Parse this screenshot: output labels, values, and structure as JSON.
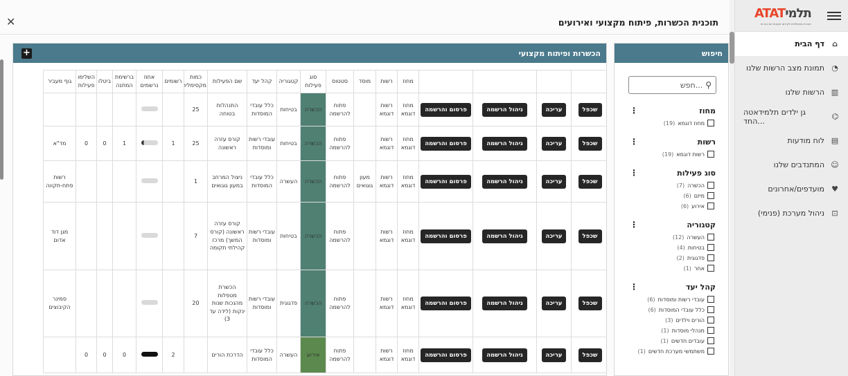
{
  "app": {
    "logo_text_left": "ATAT",
    "logo_text_right": "תלמי",
    "logo_subtitle": "תוכנית ממשלתית לקידום מעונות יום והורות",
    "nav": [
      {
        "label": "דף הבית",
        "icon": "home-icon",
        "glyph": "⌂",
        "active": true
      },
      {
        "label": "תמונת מצב הרשות שלנו",
        "icon": "chart-icon",
        "glyph": "◔",
        "active": false
      },
      {
        "label": "הרשות שלנו",
        "icon": "building-icon",
        "glyph": "▥",
        "active": false
      },
      {
        "label": "גן ילדים תלמידאטה החד...",
        "icon": "institution-icon",
        "glyph": "⌬",
        "active": false
      },
      {
        "label": "לוח מודעות",
        "icon": "board-icon",
        "glyph": "▤",
        "active": false
      },
      {
        "label": "המתנדבים שלנו",
        "icon": "users-icon",
        "glyph": "☺",
        "active": false
      },
      {
        "label": "מועדפים/אחרונים",
        "icon": "heart-icon",
        "glyph": "♥",
        "active": false
      },
      {
        "label": "ניהול מערכת (פנימי)",
        "icon": "lock-icon",
        "glyph": "⊡",
        "active": false
      }
    ]
  },
  "modal": {
    "title": "תוכנית הכשרות, פיתוח מקצועי ואירועים",
    "close_glyph": "✕"
  },
  "search_panel": {
    "title": "חיפוש",
    "search_placeholder": "חפש...",
    "filters": [
      {
        "title": "מחוז",
        "options": [
          {
            "label": "מחוז דוגמא",
            "count": "(19)"
          }
        ]
      },
      {
        "title": "רשות",
        "options": [
          {
            "label": "רשות דוגמא",
            "count": "(19)"
          }
        ]
      },
      {
        "title": "סוג פעילות",
        "options": [
          {
            "label": "הכשרה",
            "count": "(7)"
          },
          {
            "label": "מיזם",
            "count": "(6)"
          },
          {
            "label": "אירוע",
            "count": "(6)"
          }
        ]
      },
      {
        "title": "קטגוריה",
        "options": [
          {
            "label": "העשרה",
            "count": "(12)"
          },
          {
            "label": "בטיחות",
            "count": "(4)"
          },
          {
            "label": "פדגוגית",
            "count": "(2)"
          },
          {
            "label": "אחר",
            "count": "(1)"
          }
        ]
      },
      {
        "title": "קהל יעד",
        "options": [
          {
            "label": "עובדי רשות ומוסדות",
            "count": "(6)"
          },
          {
            "label": "כלל עובדי המוסדות",
            "count": "(6)"
          },
          {
            "label": "הורים וילדים",
            "count": "(3)"
          },
          {
            "label": "מנהלי מוסדות",
            "count": "(1)"
          },
          {
            "label": "עובדים חדשים",
            "count": "(1)"
          },
          {
            "label": "משתמשי מערכת חדשים",
            "count": "(1)"
          }
        ]
      }
    ]
  },
  "main_panel": {
    "title": "הכשרות ופיתוח מקצועי",
    "add_glyph": "+",
    "buttons": {
      "duplicate": "שכפל",
      "edit": "עריכה",
      "manage": "ניהול הרשמה",
      "publish": "פרסום והרשמה"
    },
    "columns": [
      "",
      "",
      "",
      "",
      "מחוז",
      "רשות",
      "מוסד",
      "סטטוס",
      "סוג פעילות",
      "קטגוריה",
      "קהל יעד",
      "שם הפעילות",
      "כמות מקסימלית",
      "רשומים",
      "אחוז נרשמים",
      "ברשימת המתנה",
      "ביטלו",
      "השלימו פעילות",
      "גוף מעביר"
    ],
    "rows": [
      {
        "district": "מחוז דוגמא",
        "authority": "רשות דוגמא",
        "institution": "",
        "status": "פתוח להרשמה",
        "type": "הכשרה",
        "category": "בטיחות",
        "audience": "כלל עובדי המוסדות",
        "name": "התנהלות בטוחה",
        "max": "25",
        "registered": "",
        "pct": 0,
        "waitlist": "",
        "cancelled": "",
        "completed": "",
        "provider": ""
      },
      {
        "district": "מחוז דוגמא",
        "authority": "רשות דוגמא",
        "institution": "",
        "status": "פתוח להרשמה",
        "type": "הכשרה",
        "category": "בטיחות",
        "audience": "עובדי רשות ומוסדות",
        "name": "קורס עזרה ראשונה",
        "max": "25",
        "registered": "1",
        "pct": 4,
        "waitlist": "1",
        "cancelled": "0",
        "completed": "0",
        "provider": "מד\"א"
      },
      {
        "district": "מחוז דוגמא",
        "authority": "רשות דוגמא",
        "institution": "מעון גוגואים",
        "status": "פתוח להרשמה",
        "type": "הכשרה",
        "category": "העשרה",
        "audience": "כלל עובדי המוסדות",
        "name": "ניצול המרחב במעון גוגואים",
        "max": "1",
        "registered": "",
        "pct": 0,
        "waitlist": "",
        "cancelled": "",
        "completed": "",
        "provider": "רשות פתח-תקווה"
      },
      {
        "district": "מחוז דוגמא",
        "authority": "רשות דוגמא",
        "institution": "",
        "status": "פתוח להרשמה",
        "type": "הכשרה",
        "category": "בטיחות",
        "audience": "עובדי רשות ומוסדות",
        "name": "קורס עזרה ראשונה (קורס המשך) מרכז קהילתי תקומה",
        "max": "7",
        "registered": "",
        "pct": 0,
        "waitlist": "",
        "cancelled": "",
        "completed": "",
        "provider": "מגן דוד אדום"
      },
      {
        "district": "מחוז דוגמא",
        "authority": "רשות דוגמא",
        "institution": "",
        "status": "פתוח להרשמה",
        "type": "הכשרה",
        "category": "פדגוגית",
        "audience": "עובדי רשות ומוסדות",
        "name": "הכשרת מטפלות מהנכות שנות ינקות (לידה עד 3)",
        "max": "20",
        "registered": "",
        "pct": 0,
        "waitlist": "",
        "cancelled": "",
        "completed": "",
        "provider": "סמינר הקיבוצים"
      },
      {
        "district": "מחוז דוגמא",
        "authority": "רשות דוגמא",
        "institution": "",
        "status": "פתוח להרשמה",
        "type": "אירוע",
        "category": "העשרה",
        "audience": "כלל עובדי המוסדות",
        "name": "הדרכת הורים",
        "max": "",
        "registered": "2",
        "pct": 100,
        "waitlist": "0",
        "cancelled": "0",
        "completed": "0",
        "provider": ""
      }
    ]
  }
}
